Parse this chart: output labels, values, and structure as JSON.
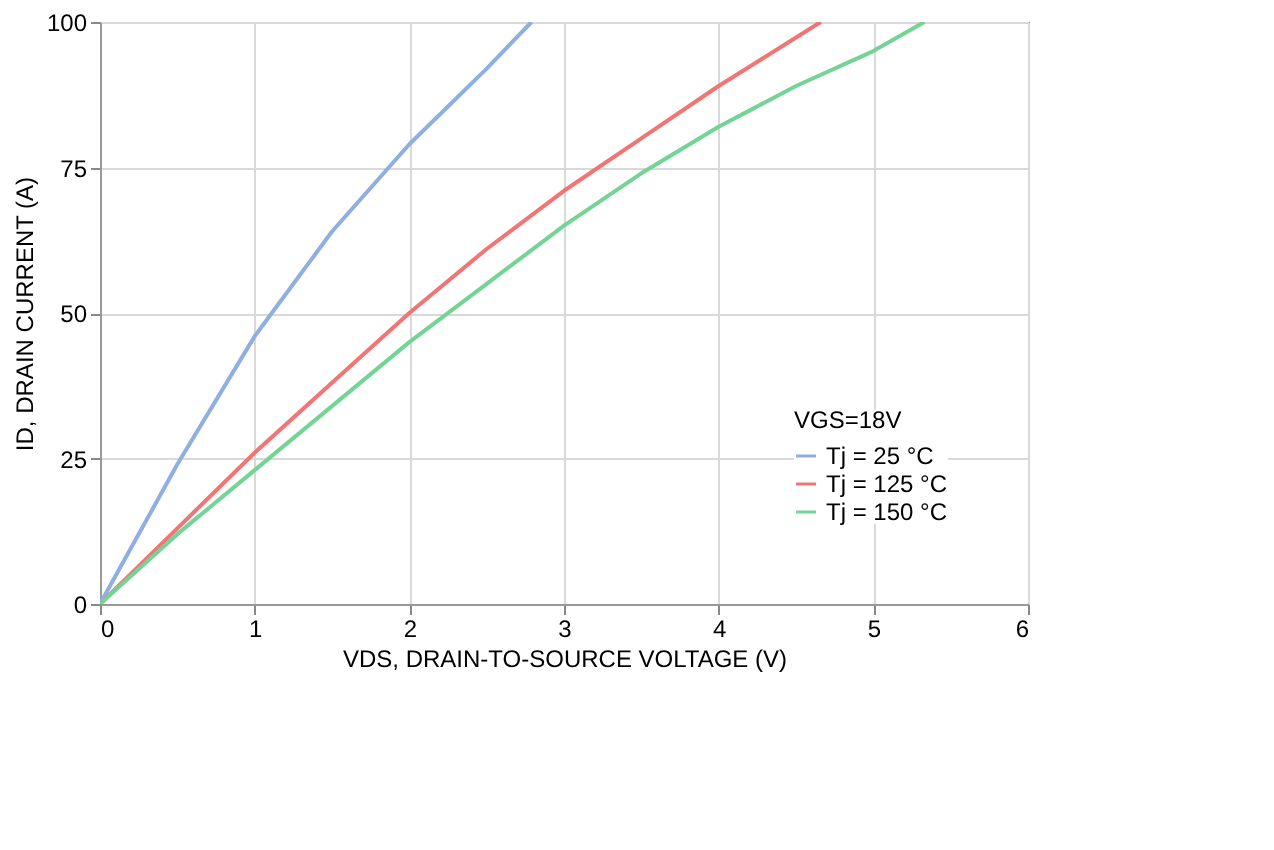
{
  "chart_data": {
    "type": "line",
    "xlabel": "VDS, DRAIN-TO-SOURCE VOLTAGE (V)",
    "ylabel": "ID, DRAIN CURRENT (A)",
    "legend_title": "VGS=18V",
    "xlim": [
      0,
      6
    ],
    "xticks": [
      0,
      1,
      2,
      3,
      4,
      5,
      6
    ],
    "ylim": [
      0,
      100
    ],
    "yticks": [
      0,
      25,
      50,
      75,
      100
    ],
    "grid": true,
    "legend": "bottom right",
    "marker": "none",
    "line_style": "solid",
    "series": [
      {
        "name": "Tj = 25 °C",
        "color": "#8faee3",
        "x": [
          0,
          0.5,
          1,
          1.5,
          2,
          2.5,
          2.79
        ],
        "values": [
          0,
          24,
          46,
          64,
          79,
          92,
          100
        ]
      },
      {
        "name": "Tj = 125 °C",
        "color": "#f27474",
        "x": [
          0,
          0.5,
          1,
          1.5,
          2,
          2.5,
          3,
          3.5,
          4,
          4.66
        ],
        "values": [
          0,
          13,
          26,
          38,
          50,
          61,
          71,
          80,
          89,
          100
        ]
      },
      {
        "name": "Tj = 150 °C",
        "color": "#74d495",
        "x": [
          0,
          0.5,
          1,
          1.5,
          2,
          2.5,
          3,
          3.5,
          4,
          4.5,
          5,
          5.33
        ],
        "values": [
          0,
          12,
          23,
          34,
          45,
          55,
          65,
          74,
          82,
          89,
          95,
          100
        ]
      }
    ]
  }
}
